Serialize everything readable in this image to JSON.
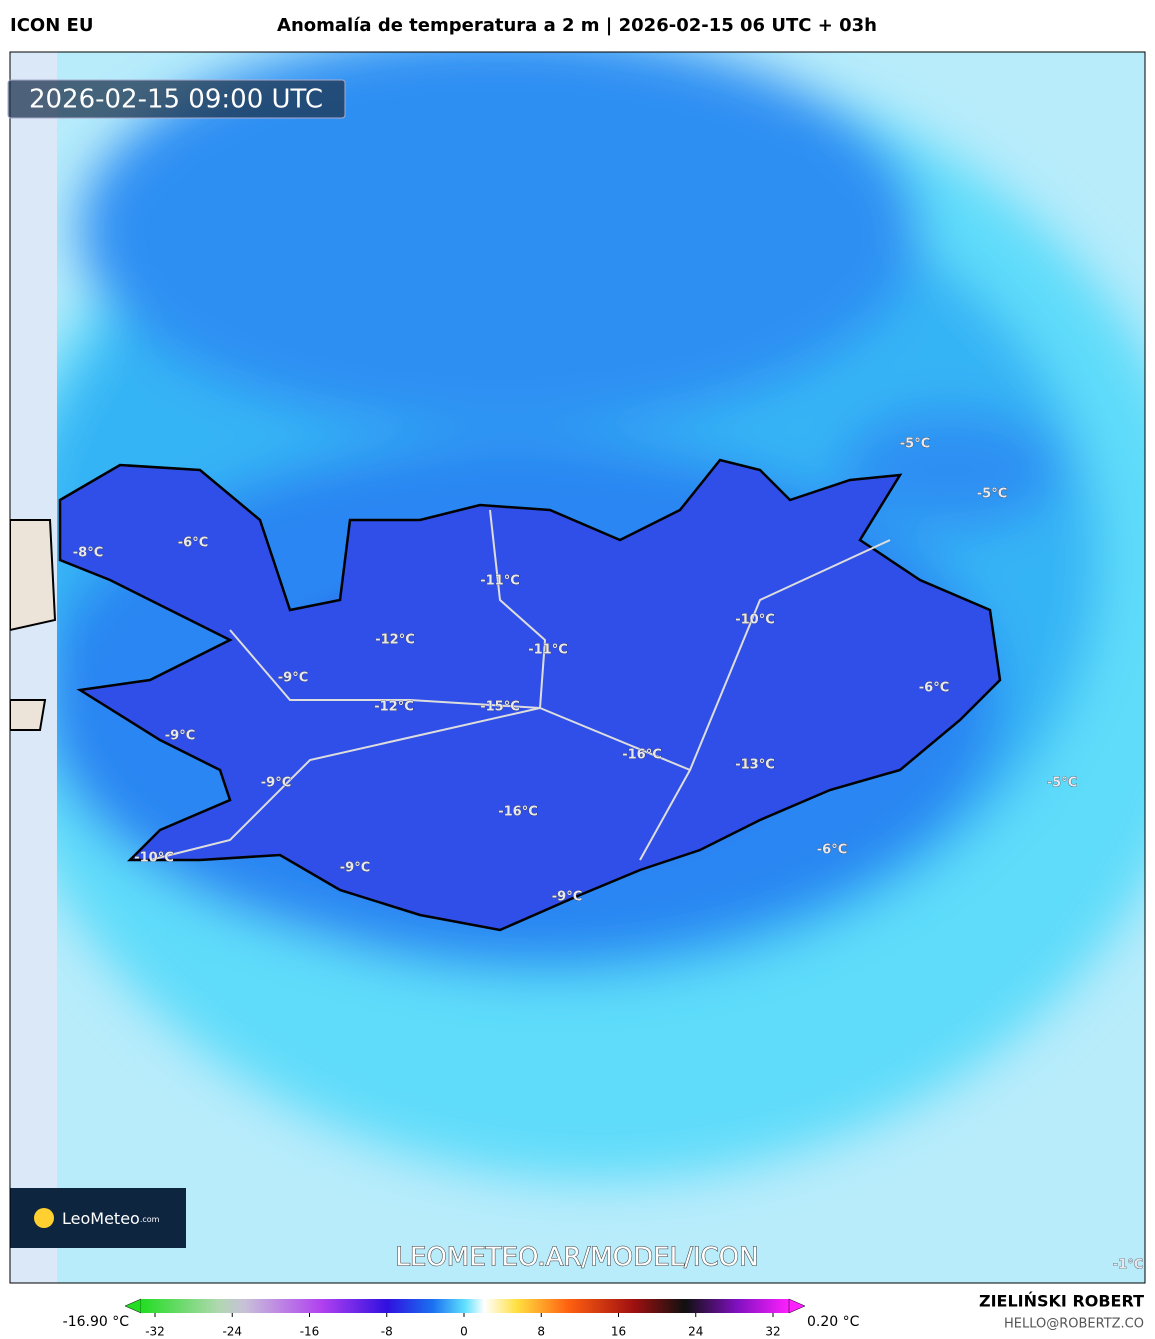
{
  "header": {
    "model": "ICON EU",
    "title": "Anomalía de temperatura a 2 m | 2026-02-15 06 UTC + 03h"
  },
  "map": {
    "timestamp": "2026-02-15 09:00 UTC",
    "labels": [
      "-5°C",
      "-5°C",
      "-8°C",
      "-6°C",
      "-11°C",
      "-12°C",
      "-10°C",
      "-11°C",
      "-9°C",
      "-6°C",
      "-12°C",
      "-15°C",
      "-9°C",
      "-16°C",
      "-13°C",
      "-9°C",
      "-5°C",
      "-16°C",
      "-6°C",
      "-10°C",
      "-9°C",
      "-9°C",
      "-1°C"
    ],
    "logo": "LeoMeteo",
    "logo_suffix": ".com",
    "watermark": "LEOMETEO.AR/MODEL/ICON"
  },
  "colorbar": {
    "min_label": "-16.90 °C",
    "max_label": "0.20 °C",
    "ticks": [
      -32,
      -24,
      -16,
      -8,
      0,
      8,
      16,
      24,
      32
    ]
  },
  "footer": {
    "author": "ZIELIŃSKI ROBERT",
    "contact": "HELLO@ROBERTZ.CO"
  }
}
